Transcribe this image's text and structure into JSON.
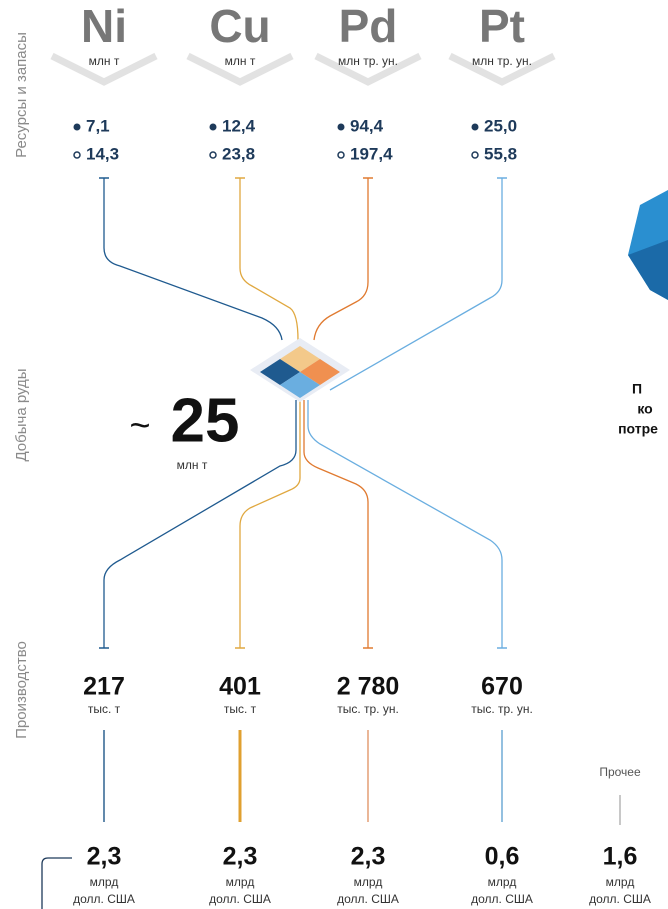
{
  "side_labels": [
    "Ресурсы и запасы",
    "Добыча руды",
    "Производство"
  ],
  "metals": [
    {
      "symbol": "Ni",
      "unit": "млн т",
      "resources": "7,1",
      "reserves": "14,3",
      "production": "217",
      "production_unit": "тыс. т",
      "revenue": "2,3",
      "revenue_unit": [
        "млрд",
        "долл. США"
      ]
    },
    {
      "symbol": "Cu",
      "unit": "млн т",
      "resources": "12,4",
      "reserves": "23,8",
      "production": "401",
      "production_unit": "тыс. т",
      "revenue": "2,3",
      "revenue_unit": [
        "млрд",
        "долл. США"
      ]
    },
    {
      "symbol": "Pd",
      "unit": "млн тр. ун.",
      "resources": "94,4",
      "reserves": "197,4",
      "production": "2 780",
      "production_unit": "тыс. тр. ун.",
      "revenue": "2,3",
      "revenue_unit": [
        "млрд",
        "долл. США"
      ]
    },
    {
      "symbol": "Pt",
      "unit": "млн тр. ун.",
      "resources": "25,0",
      "reserves": "55,8",
      "production": "670",
      "production_unit": "тыс. тр. ун.",
      "revenue": "0,6",
      "revenue_unit": [
        "млрд",
        "долл. США"
      ]
    }
  ],
  "ore": {
    "prefix": "~",
    "value": "25",
    "unit": "млн т"
  },
  "other": {
    "label": "Прочее",
    "revenue": "1,6",
    "revenue_unit": [
      "млрд",
      "долл. США"
    ]
  },
  "cutoff_text": [
    "П",
    "ко",
    "потре"
  ]
}
